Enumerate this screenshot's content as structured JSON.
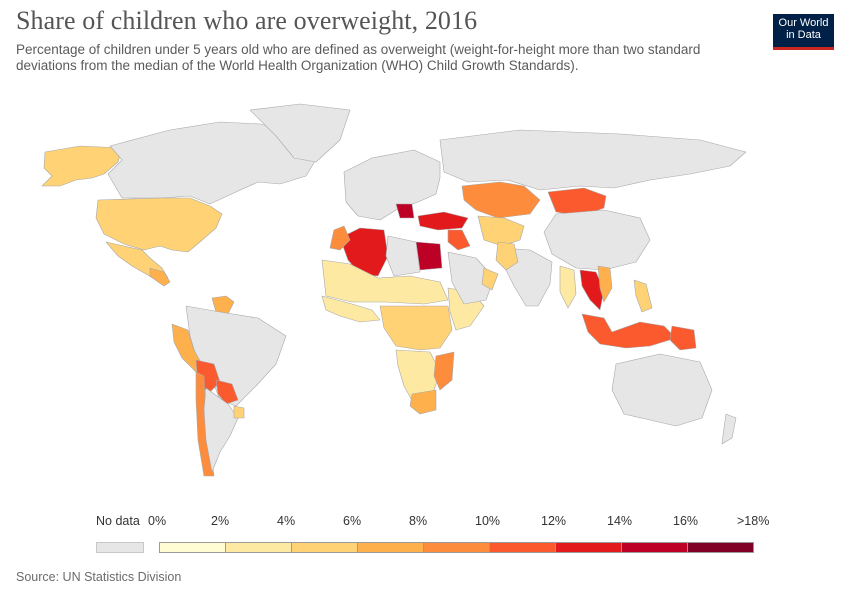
{
  "header": {
    "title": "Share of children who are overweight, 2016",
    "subtitle": "Percentage of children under 5 years old who are defined as overweight (weight-for-height more than two standard deviations from the median of the World Health Organization (WHO) Child Growth Standards)."
  },
  "logo": {
    "line1": "Our World",
    "line2": "in Data"
  },
  "legend": {
    "no_data_label": "No data",
    "no_data_color": "#e6e6e6",
    "tick_labels": [
      "0%",
      "2%",
      "4%",
      "6%",
      "8%",
      "10%",
      "12%",
      "14%",
      "16%",
      ">18%"
    ],
    "bin_colors": [
      "#fffbd3",
      "#fee9a3",
      "#fed275",
      "#feb04c",
      "#fd8d3c",
      "#fa5a2e",
      "#e31a1c",
      "#bd0026",
      "#800026"
    ]
  },
  "footer": {
    "source": "Source: UN Statistics Division"
  },
  "chart_data": {
    "type": "choropleth",
    "unit": "%",
    "year": 2016,
    "scale_bins": [
      0,
      2,
      4,
      6,
      8,
      10,
      12,
      14,
      16,
      18
    ],
    "regions": [
      {
        "name": "Alaska",
        "bin": 2
      },
      {
        "name": "Canada",
        "bin": -1
      },
      {
        "name": "Greenland",
        "bin": -1
      },
      {
        "name": "United States",
        "bin": 2
      },
      {
        "name": "Mexico",
        "bin": 2
      },
      {
        "name": "Central America",
        "bin": 3
      },
      {
        "name": "Venezuela",
        "bin": 3
      },
      {
        "name": "Brazil",
        "bin": -1
      },
      {
        "name": "Peru",
        "bin": 3
      },
      {
        "name": "Bolivia",
        "bin": 5
      },
      {
        "name": "Paraguay",
        "bin": 5
      },
      {
        "name": "Chile",
        "bin": 4
      },
      {
        "name": "Argentina",
        "bin": -1
      },
      {
        "name": "Uruguay",
        "bin": 2
      },
      {
        "name": "Europe",
        "bin": -1
      },
      {
        "name": "Balkans",
        "bin": 7
      },
      {
        "name": "Turkey",
        "bin": 6
      },
      {
        "name": "Syria",
        "bin": 5
      },
      {
        "name": "Algeria",
        "bin": 6
      },
      {
        "name": "Morocco",
        "bin": 4
      },
      {
        "name": "Egypt",
        "bin": 7
      },
      {
        "name": "Libya",
        "bin": -1
      },
      {
        "name": "Sahel",
        "bin": 1
      },
      {
        "name": "West Africa",
        "bin": 1
      },
      {
        "name": "Central Africa",
        "bin": 2
      },
      {
        "name": "East Africa",
        "bin": 1
      },
      {
        "name": "Southern Africa",
        "bin": 1
      },
      {
        "name": "Mozambique",
        "bin": 4
      },
      {
        "name": "South Africa",
        "bin": 3
      },
      {
        "name": "Kazakhstan",
        "bin": 4
      },
      {
        "name": "Mongolia",
        "bin": 5
      },
      {
        "name": "Central Asia",
        "bin": 2
      },
      {
        "name": "Russia",
        "bin": -1
      },
      {
        "name": "China",
        "bin": -1
      },
      {
        "name": "India",
        "bin": -1
      },
      {
        "name": "Pakistan",
        "bin": 2
      },
      {
        "name": "Arabian Peninsula",
        "bin": -1
      },
      {
        "name": "Oman",
        "bin": 2
      },
      {
        "name": "Myanmar",
        "bin": 1
      },
      {
        "name": "Thailand",
        "bin": 6
      },
      {
        "name": "Vietnam",
        "bin": 3
      },
      {
        "name": "Philippines",
        "bin": 2
      },
      {
        "name": "Indonesia",
        "bin": 5
      },
      {
        "name": "Papua New Guinea",
        "bin": 5
      },
      {
        "name": "Australia",
        "bin": -1
      },
      {
        "name": "New Zealand",
        "bin": -1
      }
    ]
  }
}
